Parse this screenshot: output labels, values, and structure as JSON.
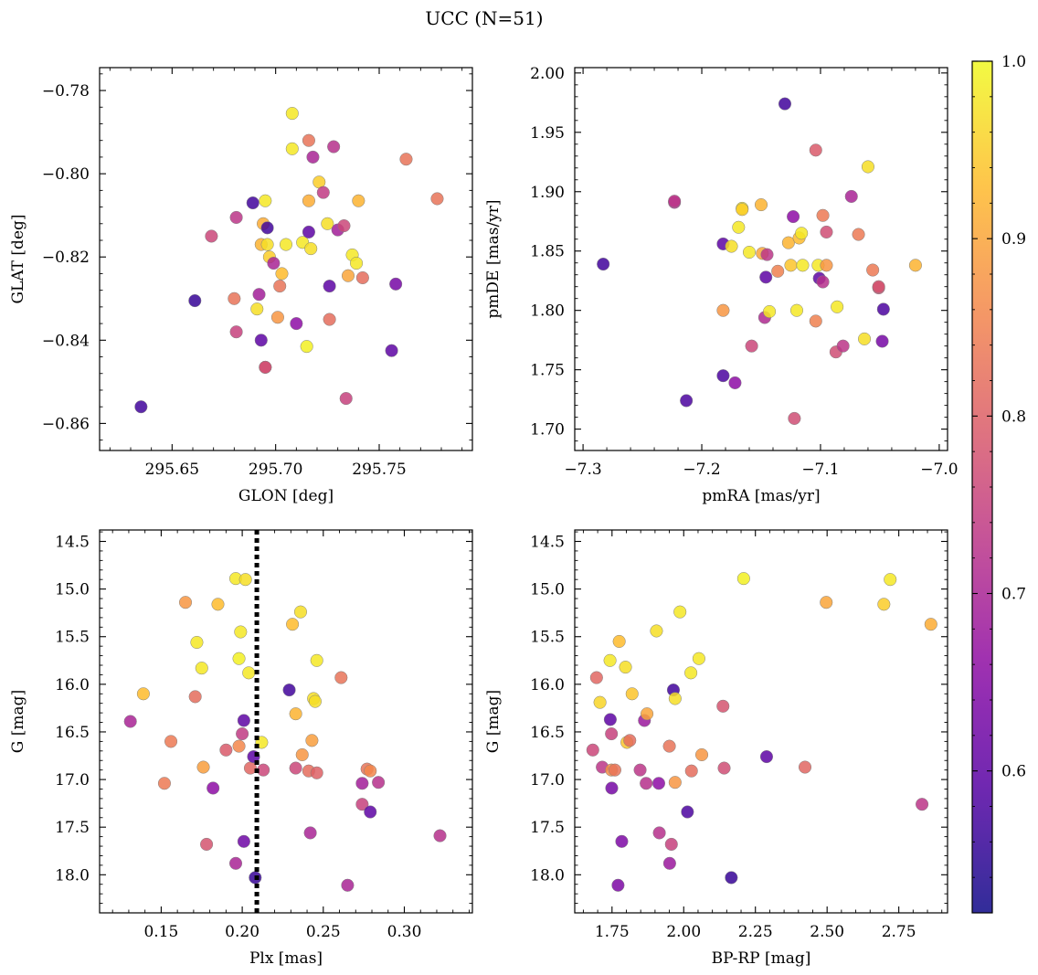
{
  "suptitle": "UCC (N=51)",
  "colorbar": {
    "vmin": 0.52,
    "vmax": 1.0,
    "ticks": [
      0.6,
      0.7,
      0.8,
      0.9,
      1.0
    ],
    "tick_labels": [
      "0.6",
      "0.7",
      "0.8",
      "0.9",
      "1.0"
    ]
  },
  "chart_data": [
    {
      "type": "scatter",
      "xlabel": "GLON [deg]",
      "ylabel": "GLAT [deg]",
      "xlim": [
        295.615,
        295.795
      ],
      "ylim": [
        -0.8665,
        -0.7745
      ],
      "x_ticks": [
        295.65,
        295.7,
        295.75
      ],
      "x_tick_labels": [
        "295.65",
        "295.70",
        "295.75"
      ],
      "y_ticks": [
        -0.86,
        -0.84,
        -0.82,
        -0.8,
        -0.78
      ],
      "y_tick_labels": [
        "−0.86",
        "−0.84",
        "−0.82",
        "−0.80",
        "−0.78"
      ],
      "points": [
        [
          295.635,
          -0.856,
          0.57
        ],
        [
          295.661,
          -0.8305,
          0.56
        ],
        [
          295.669,
          -0.815,
          0.76
        ],
        [
          295.68,
          -0.83,
          0.83
        ],
        [
          295.681,
          -0.838,
          0.75
        ],
        [
          295.681,
          -0.8105,
          0.73
        ],
        [
          295.689,
          -0.807,
          0.57
        ],
        [
          295.691,
          -0.8325,
          0.97
        ],
        [
          295.692,
          -0.829,
          0.69
        ],
        [
          295.693,
          -0.84,
          0.6
        ],
        [
          295.693,
          -0.817,
          0.92
        ],
        [
          295.694,
          -0.812,
          0.91
        ],
        [
          295.695,
          -0.8065,
          0.98
        ],
        [
          295.695,
          -0.8465,
          0.73
        ],
        [
          295.695,
          -0.8465,
          0.78
        ],
        [
          295.696,
          -0.813,
          0.57
        ],
        [
          295.696,
          -0.817,
          0.97
        ],
        [
          295.697,
          -0.82,
          0.95
        ],
        [
          295.699,
          -0.8215,
          0.7
        ],
        [
          295.701,
          -0.8345,
          0.88
        ],
        [
          295.702,
          -0.827,
          0.83
        ],
        [
          295.703,
          -0.824,
          0.93
        ],
        [
          295.705,
          -0.817,
          0.98
        ],
        [
          295.708,
          -0.7855,
          0.98
        ],
        [
          295.708,
          -0.794,
          0.98
        ],
        [
          295.71,
          -0.836,
          0.66
        ],
        [
          295.713,
          -0.8165,
          0.98
        ],
        [
          295.715,
          -0.8415,
          0.99
        ],
        [
          295.716,
          -0.814,
          0.6
        ],
        [
          295.716,
          -0.8065,
          0.91
        ],
        [
          295.716,
          -0.792,
          0.83
        ],
        [
          295.717,
          -0.818,
          0.97
        ],
        [
          295.718,
          -0.796,
          0.7
        ],
        [
          295.721,
          -0.802,
          0.95
        ],
        [
          295.723,
          -0.8045,
          0.74
        ],
        [
          295.725,
          -0.812,
          0.97
        ],
        [
          295.726,
          -0.835,
          0.82
        ],
        [
          295.726,
          -0.827,
          0.6
        ],
        [
          295.728,
          -0.7935,
          0.72
        ],
        [
          295.73,
          -0.8135,
          0.69
        ],
        [
          295.733,
          -0.8125,
          0.76
        ],
        [
          295.734,
          -0.854,
          0.75
        ],
        [
          295.735,
          -0.8245,
          0.9
        ],
        [
          295.737,
          -0.8195,
          0.98
        ],
        [
          295.739,
          -0.8215,
          0.98
        ],
        [
          295.74,
          -0.8065,
          0.92
        ],
        [
          295.742,
          -0.825,
          0.82
        ],
        [
          295.756,
          -0.8425,
          0.6
        ],
        [
          295.758,
          -0.8265,
          0.63
        ],
        [
          295.763,
          -0.7965,
          0.83
        ],
        [
          295.778,
          -0.806,
          0.83
        ]
      ]
    },
    {
      "type": "scatter",
      "xlabel": "pmRA [mas/yr]",
      "ylabel": "pmDE [mas/yr]",
      "xlim": [
        -7.307,
        -6.993
      ],
      "ylim": [
        1.682,
        2.0045
      ],
      "x_ticks": [
        -7.3,
        -7.2,
        -7.1,
        -7.0
      ],
      "x_tick_labels": [
        "−7.3",
        "−7.2",
        "−7.1",
        "−7.0"
      ],
      "y_ticks": [
        1.7,
        1.75,
        1.8,
        1.85,
        1.9,
        1.95,
        2.0
      ],
      "y_tick_labels": [
        "1.70",
        "1.75",
        "1.80",
        "1.85",
        "1.90",
        "1.95",
        "2.00"
      ],
      "points": [
        [
          -7.283,
          1.839,
          0.57
        ],
        [
          -7.223,
          1.891,
          0.71
        ],
        [
          -7.223,
          1.892,
          0.73
        ],
        [
          -7.213,
          1.724,
          0.58
        ],
        [
          -7.182,
          1.856,
          0.6
        ],
        [
          -7.182,
          1.8,
          0.88
        ],
        [
          -7.182,
          1.745,
          0.58
        ],
        [
          -7.175,
          1.854,
          0.97
        ],
        [
          -7.172,
          1.739,
          0.66
        ],
        [
          -7.169,
          1.87,
          0.98
        ],
        [
          -7.166,
          1.886,
          0.98
        ],
        [
          -7.166,
          1.885,
          0.95
        ],
        [
          -7.16,
          1.849,
          0.98
        ],
        [
          -7.158,
          1.77,
          0.76
        ],
        [
          -7.15,
          1.889,
          0.92
        ],
        [
          -7.149,
          1.848,
          0.9
        ],
        [
          -7.147,
          1.794,
          0.71
        ],
        [
          -7.146,
          1.828,
          0.6
        ],
        [
          -7.145,
          1.847,
          0.73
        ],
        [
          -7.143,
          1.799,
          0.98
        ],
        [
          -7.136,
          1.833,
          0.85
        ],
        [
          -7.13,
          1.974,
          0.57
        ],
        [
          -7.127,
          1.857,
          0.92
        ],
        [
          -7.125,
          1.838,
          0.94
        ],
        [
          -7.123,
          1.879,
          0.66
        ],
        [
          -7.122,
          1.709,
          0.77
        ],
        [
          -7.12,
          1.8,
          0.98
        ],
        [
          -7.118,
          1.861,
          0.93
        ],
        [
          -7.116,
          1.865,
          0.98
        ],
        [
          -7.115,
          1.838,
          0.98
        ],
        [
          -7.104,
          1.791,
          0.85
        ],
        [
          -7.104,
          1.935,
          0.79
        ],
        [
          -7.102,
          1.838,
          0.98
        ],
        [
          -7.101,
          1.827,
          0.6
        ],
        [
          -7.098,
          1.88,
          0.84
        ],
        [
          -7.098,
          1.824,
          0.72
        ],
        [
          -7.095,
          1.866,
          0.77
        ],
        [
          -7.095,
          1.838,
          0.88
        ],
        [
          -7.087,
          1.765,
          0.77
        ],
        [
          -7.086,
          1.803,
          0.98
        ],
        [
          -7.081,
          1.77,
          0.73
        ],
        [
          -7.074,
          1.896,
          0.7
        ],
        [
          -7.068,
          1.864,
          0.84
        ],
        [
          -7.063,
          1.776,
          0.97
        ],
        [
          -7.06,
          1.921,
          0.97
        ],
        [
          -7.056,
          1.834,
          0.84
        ],
        [
          -7.051,
          1.819,
          0.77
        ],
        [
          -7.051,
          1.82,
          0.78
        ],
        [
          -7.048,
          1.774,
          0.63
        ],
        [
          -7.047,
          1.801,
          0.58
        ],
        [
          -7.02,
          1.838,
          0.92
        ]
      ]
    },
    {
      "type": "scatter",
      "xlabel": "Plx [mas]",
      "ylabel": "G [mag]",
      "xlim": [
        0.112,
        0.342
      ],
      "ylim": [
        18.4,
        14.38
      ],
      "x_ticks": [
        0.15,
        0.2,
        0.25,
        0.3
      ],
      "x_tick_labels": [
        "0.15",
        "0.20",
        "0.25",
        "0.30"
      ],
      "y_ticks": [
        14.5,
        15.0,
        15.5,
        16.0,
        16.5,
        17.0,
        17.5,
        18.0
      ],
      "y_tick_labels": [
        "14.5",
        "15.0",
        "15.5",
        "16.0",
        "16.5",
        "17.0",
        "17.5",
        "18.0"
      ],
      "vline": {
        "x": 0.209
      },
      "points": [
        [
          0.131,
          16.39,
          0.7
        ],
        [
          0.139,
          16.1,
          0.93
        ],
        [
          0.152,
          17.04,
          0.84
        ],
        [
          0.156,
          16.6,
          0.84
        ],
        [
          0.165,
          15.14,
          0.88
        ],
        [
          0.171,
          16.13,
          0.82
        ],
        [
          0.172,
          15.56,
          0.98
        ],
        [
          0.175,
          15.83,
          0.98
        ],
        [
          0.176,
          16.87,
          0.89
        ],
        [
          0.178,
          17.68,
          0.78
        ],
        [
          0.182,
          17.09,
          0.66
        ],
        [
          0.185,
          15.16,
          0.93
        ],
        [
          0.19,
          16.69,
          0.79
        ],
        [
          0.196,
          14.89,
          0.98
        ],
        [
          0.196,
          17.88,
          0.7
        ],
        [
          0.198,
          15.73,
          0.99
        ],
        [
          0.198,
          16.65,
          0.86
        ],
        [
          0.199,
          15.45,
          0.98
        ],
        [
          0.2,
          16.52,
          0.74
        ],
        [
          0.201,
          16.38,
          0.6
        ],
        [
          0.201,
          17.65,
          0.62
        ],
        [
          0.202,
          14.9,
          0.97
        ],
        [
          0.204,
          15.88,
          0.98
        ],
        [
          0.205,
          16.88,
          0.81
        ],
        [
          0.207,
          16.76,
          0.6
        ],
        [
          0.208,
          18.03,
          0.56
        ],
        [
          0.212,
          16.61,
          0.98
        ],
        [
          0.213,
          16.9,
          0.76
        ],
        [
          0.229,
          16.06,
          0.57
        ],
        [
          0.231,
          15.37,
          0.93
        ],
        [
          0.233,
          16.31,
          0.92
        ],
        [
          0.233,
          16.88,
          0.76
        ],
        [
          0.236,
          15.24,
          0.97
        ],
        [
          0.237,
          16.74,
          0.88
        ],
        [
          0.241,
          16.91,
          0.82
        ],
        [
          0.242,
          17.56,
          0.7
        ],
        [
          0.243,
          16.59,
          0.89
        ],
        [
          0.244,
          16.15,
          0.97
        ],
        [
          0.245,
          16.18,
          0.97
        ],
        [
          0.246,
          15.75,
          0.98
        ],
        [
          0.246,
          16.93,
          0.8
        ],
        [
          0.261,
          15.93,
          0.83
        ],
        [
          0.265,
          18.11,
          0.7
        ],
        [
          0.274,
          17.04,
          0.69
        ],
        [
          0.274,
          17.26,
          0.75
        ],
        [
          0.277,
          16.89,
          0.83
        ],
        [
          0.279,
          16.91,
          0.86
        ],
        [
          0.279,
          17.34,
          0.6
        ],
        [
          0.284,
          17.03,
          0.72
        ],
        [
          0.322,
          17.59,
          0.72
        ]
      ]
    },
    {
      "type": "scatter",
      "xlabel": "BP-RP [mag]",
      "ylabel": "G [mag]",
      "xlim": [
        1.62,
        2.92
      ],
      "ylim": [
        18.4,
        14.38
      ],
      "x_ticks": [
        1.75,
        2.0,
        2.25,
        2.5,
        2.75
      ],
      "x_tick_labels": [
        "1.75",
        "2.00",
        "2.25",
        "2.50",
        "2.75"
      ],
      "y_ticks": [
        14.5,
        15.0,
        15.5,
        16.0,
        16.5,
        17.0,
        17.5,
        18.0
      ],
      "y_tick_labels": [
        "14.5",
        "15.0",
        "15.5",
        "16.0",
        "16.5",
        "17.0",
        "17.5",
        "18.0"
      ],
      "points": [
        [
          1.683,
          16.69,
          0.76
        ],
        [
          1.696,
          15.93,
          0.81
        ],
        [
          1.708,
          16.19,
          0.96
        ],
        [
          1.716,
          16.87,
          0.73
        ],
        [
          1.743,
          15.75,
          0.98
        ],
        [
          1.744,
          16.37,
          0.6
        ],
        [
          1.748,
          16.52,
          0.75
        ],
        [
          1.748,
          16.9,
          0.87
        ],
        [
          1.749,
          17.09,
          0.63
        ],
        [
          1.76,
          16.9,
          0.83
        ],
        [
          1.771,
          18.11,
          0.64
        ],
        [
          1.775,
          15.55,
          0.93
        ],
        [
          1.784,
          17.65,
          0.64
        ],
        [
          1.797,
          15.82,
          0.97
        ],
        [
          1.802,
          16.61,
          0.94
        ],
        [
          1.812,
          16.59,
          0.82
        ],
        [
          1.82,
          16.1,
          0.94
        ],
        [
          1.848,
          16.9,
          0.73
        ],
        [
          1.863,
          16.38,
          0.68
        ],
        [
          1.869,
          17.04,
          0.72
        ],
        [
          1.872,
          16.31,
          0.9
        ],
        [
          1.905,
          15.44,
          0.97
        ],
        [
          1.913,
          17.04,
          0.66
        ],
        [
          1.915,
          17.56,
          0.72
        ],
        [
          1.95,
          16.65,
          0.83
        ],
        [
          1.951,
          17.88,
          0.68
        ],
        [
          1.957,
          17.68,
          0.75
        ],
        [
          1.964,
          16.06,
          0.57
        ],
        [
          1.97,
          16.15,
          0.97
        ],
        [
          1.97,
          17.03,
          0.88
        ],
        [
          1.987,
          15.24,
          0.98
        ],
        [
          2.013,
          17.34,
          0.58
        ],
        [
          2.025,
          15.88,
          0.98
        ],
        [
          2.027,
          16.91,
          0.82
        ],
        [
          2.053,
          15.73,
          0.98
        ],
        [
          2.063,
          16.74,
          0.88
        ],
        [
          2.137,
          16.23,
          0.78
        ],
        [
          2.141,
          16.88,
          0.77
        ],
        [
          2.166,
          18.03,
          0.56
        ],
        [
          2.209,
          14.89,
          0.99
        ],
        [
          2.289,
          16.76,
          0.6
        ],
        [
          2.423,
          16.87,
          0.81
        ],
        [
          2.497,
          15.14,
          0.9
        ],
        [
          2.698,
          15.16,
          0.95
        ],
        [
          2.72,
          14.9,
          0.98
        ],
        [
          2.831,
          17.26,
          0.73
        ],
        [
          2.862,
          15.37,
          0.91
        ]
      ]
    }
  ]
}
